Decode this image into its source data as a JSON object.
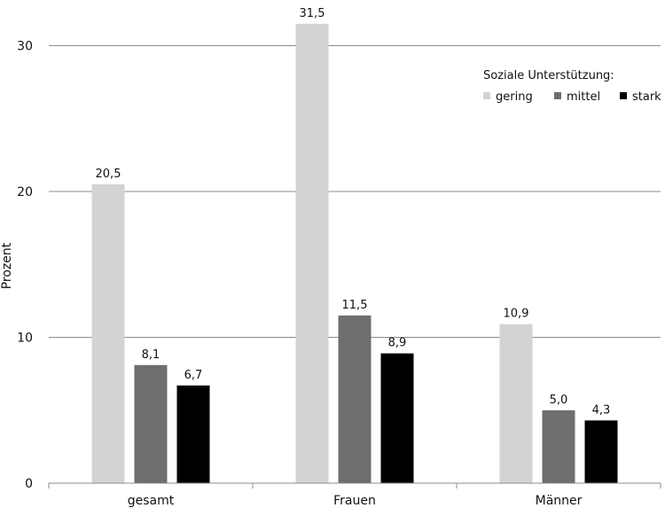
{
  "chart_data": {
    "type": "bar",
    "categories": [
      "gesamt",
      "Frauen",
      "Männer"
    ],
    "series": [
      {
        "name": "gering",
        "values": [
          20.5,
          31.5,
          10.9
        ],
        "labels": [
          "20,5",
          "31,5",
          "10,9"
        ],
        "color": "#d3d3d3"
      },
      {
        "name": "mittel",
        "values": [
          8.1,
          11.5,
          5.0
        ],
        "labels": [
          "8,1",
          "11,5",
          "5,0"
        ],
        "color": "#6e6e6e"
      },
      {
        "name": "stark",
        "values": [
          6.7,
          8.9,
          4.3
        ],
        "labels": [
          "6,7",
          "8,9",
          "4,3"
        ],
        "color": "#000000"
      }
    ],
    "title": "",
    "xlabel": "",
    "ylabel": "Prozent",
    "ylim": [
      0,
      33
    ],
    "yticks": [
      0,
      10,
      20,
      30
    ],
    "grid": true,
    "legend_title": "Soziale Unterstützung:",
    "legend_position": "top-right"
  }
}
